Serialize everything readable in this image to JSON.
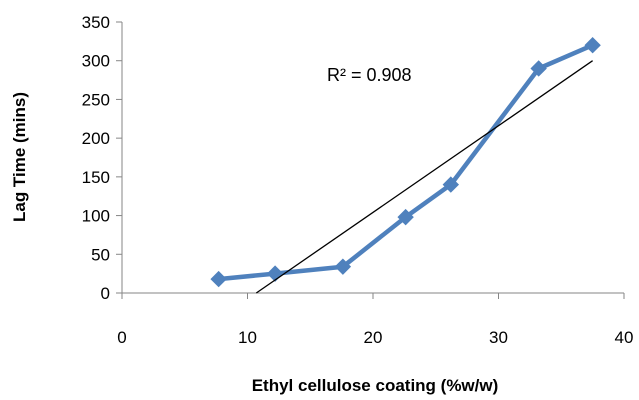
{
  "chart_data": {
    "type": "line",
    "xlabel": "Ethyl cellulose coating (%w/w)",
    "ylabel": "Lag Time (mins)",
    "xlim": [
      0,
      40
    ],
    "ylim": [
      0,
      350
    ],
    "x_ticks": [
      "0",
      "10",
      "20",
      "30",
      "40"
    ],
    "y_ticks": [
      "0",
      "50",
      "100",
      "150",
      "200",
      "250",
      "300",
      "350"
    ],
    "series": [
      {
        "x": [
          7.7,
          12.2,
          17.6,
          22.6,
          26.2,
          33.2,
          37.5
        ],
        "y": [
          18,
          25,
          34,
          98,
          140,
          290,
          320
        ],
        "color": "#4F81BD",
        "marker": "diamond"
      }
    ],
    "trendline": {
      "x": [
        10.7,
        37.5
      ],
      "y": [
        0,
        300
      ],
      "color": "#000000"
    },
    "annotation": "R² = 0.908",
    "grid": false
  }
}
